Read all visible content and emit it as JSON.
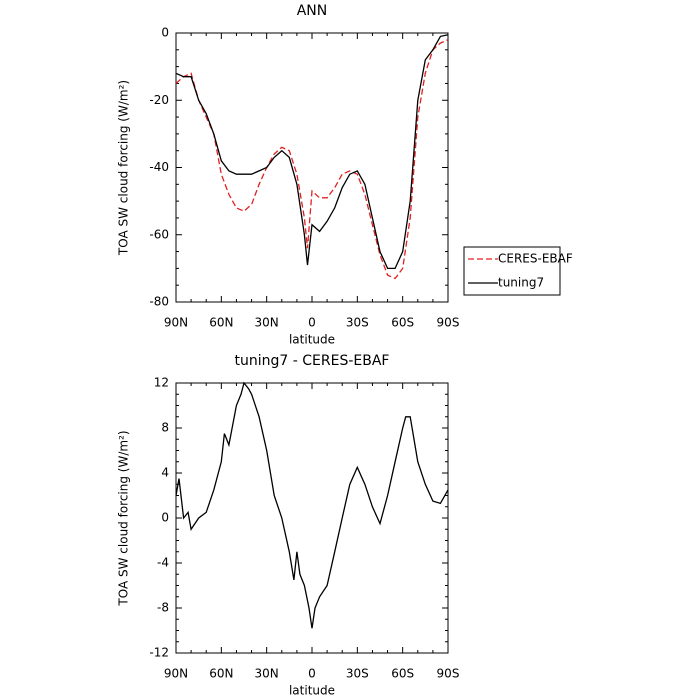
{
  "chart_data": [
    {
      "type": "line",
      "title": "ANN",
      "xlabel": "latitude",
      "ylabel": "TOA SW cloud forcing (W/m²)",
      "xlim": [
        90,
        -90
      ],
      "xticks": [
        {
          "value": 90,
          "label": "90N"
        },
        {
          "value": 60,
          "label": "60N"
        },
        {
          "value": 30,
          "label": "30N"
        },
        0,
        {
          "value": -30,
          "label": "30S"
        },
        {
          "value": -60,
          "label": "60S"
        },
        {
          "value": -90,
          "label": "90S"
        }
      ],
      "ylim": [
        -80,
        0
      ],
      "yticks": [
        -80,
        -60,
        -40,
        -20,
        0
      ],
      "legend": "right",
      "x": [
        90,
        85,
        80,
        75,
        70,
        65,
        60,
        55,
        50,
        45,
        40,
        35,
        30,
        25,
        20,
        15,
        10,
        5,
        3,
        0,
        -5,
        -10,
        -15,
        -20,
        -25,
        -30,
        -35,
        -40,
        -45,
        -50,
        -55,
        -60,
        -65,
        -70,
        -75,
        -80,
        -85,
        -90
      ],
      "series": [
        {
          "name": "CERES-EBAF",
          "color": "#e02020",
          "dashed": true,
          "values": [
            -15,
            -13,
            -12,
            -20,
            -25,
            -30,
            -42,
            -48,
            -52,
            -53,
            -51,
            -45,
            -40,
            -36,
            -34,
            -35,
            -42,
            -55,
            -64,
            -47,
            -49,
            -49,
            -46,
            -42,
            -41,
            -42,
            -48,
            -57,
            -66,
            -72,
            -73,
            -70,
            -55,
            -25,
            -12,
            -5,
            -3,
            -2
          ]
        },
        {
          "name": "tuning7",
          "color": "#000000",
          "dashed": false,
          "values": [
            -12,
            -13,
            -13,
            -20,
            -24,
            -30,
            -38,
            -41,
            -42,
            -42,
            -42,
            -41,
            -40,
            -37,
            -35,
            -37,
            -45,
            -60,
            -69,
            -57,
            -59,
            -56,
            -52,
            -46,
            -42,
            -41,
            -45,
            -55,
            -65,
            -70,
            -70,
            -65,
            -50,
            -20,
            -8,
            -5,
            -1,
            -0.5
          ]
        }
      ]
    },
    {
      "type": "line",
      "title": "tuning7 - CERES-EBAF",
      "xlabel": "latitude",
      "ylabel": "TOA SW cloud forcing (W/m²)",
      "xlim": [
        90,
        -90
      ],
      "xticks": [
        {
          "value": 90,
          "label": "90N"
        },
        {
          "value": 60,
          "label": "60N"
        },
        {
          "value": 30,
          "label": "30N"
        },
        0,
        {
          "value": -30,
          "label": "30S"
        },
        {
          "value": -60,
          "label": "60S"
        },
        {
          "value": -90,
          "label": "90S"
        }
      ],
      "ylim": [
        -12,
        12
      ],
      "yticks": [
        -12,
        -8,
        -4,
        0,
        4,
        8,
        12
      ],
      "x": [
        90,
        88,
        85,
        82,
        80,
        75,
        70,
        65,
        60,
        58,
        55,
        50,
        47,
        45,
        42,
        40,
        35,
        30,
        25,
        20,
        15,
        12,
        10,
        8,
        5,
        2,
        0,
        -2,
        -5,
        -10,
        -15,
        -20,
        -25,
        -30,
        -35,
        -40,
        -45,
        -50,
        -55,
        -60,
        -62,
        -65,
        -70,
        -75,
        -80,
        -85,
        -90
      ],
      "series": [
        {
          "color": "#000000",
          "dashed": false,
          "values": [
            2,
            3.5,
            0,
            0.5,
            -1,
            0,
            0.5,
            2.5,
            5,
            7.5,
            6.5,
            10,
            11,
            12,
            11.5,
            11,
            9,
            6,
            2,
            0,
            -3,
            -5.5,
            -3,
            -5,
            -6,
            -8,
            -9.8,
            -8,
            -7,
            -6,
            -3,
            0,
            3,
            4.5,
            3,
            1,
            -0.5,
            2,
            5,
            8,
            9,
            9,
            5,
            3,
            1.5,
            1.3,
            2.5
          ]
        }
      ]
    }
  ]
}
